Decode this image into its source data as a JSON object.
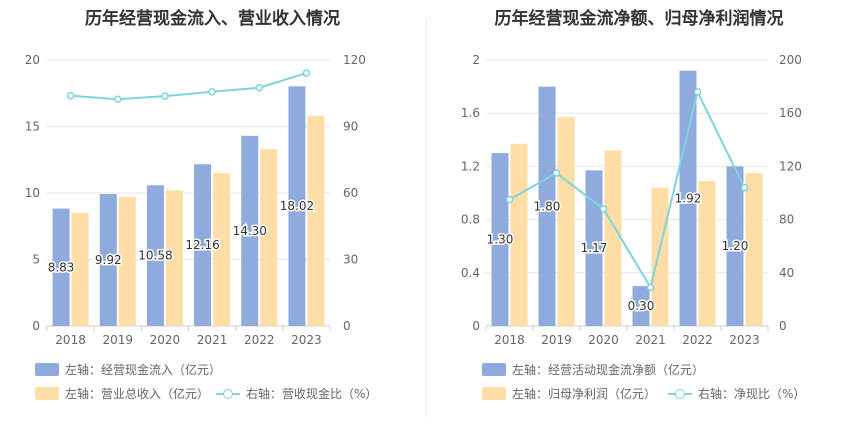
{
  "colors": {
    "bar_primary": "#8faadc",
    "bar_secondary": "#ffdda6",
    "line": "#7fd3dc"
  },
  "charts": [
    {
      "title": "历年经营现金流入、营业收入情况",
      "legend": {
        "bar1": "左轴：经营现金流入（亿元）",
        "bar2": "左轴：营业总收入（亿元）",
        "line": "右轴：营收现金比（%）"
      }
    },
    {
      "title": "历年经营现金流净额、归母净利润情况",
      "legend": {
        "bar1": "左轴：经营活动现金流净额（亿元）",
        "bar2": "左轴：归母净利润（亿元）",
        "line": "右轴：净现比（%）"
      }
    }
  ],
  "chart_data": [
    {
      "type": "bar",
      "title": "历年经营现金流入、营业收入情况",
      "categories": [
        "2018",
        "2019",
        "2020",
        "2021",
        "2022",
        "2023"
      ],
      "series": [
        {
          "name": "左轴：经营现金流入（亿元）",
          "type": "bar",
          "axis": "left",
          "values": [
            8.83,
            9.92,
            10.58,
            12.16,
            14.3,
            18.02
          ],
          "labels": [
            "8.83",
            "9.92",
            "10.58",
            "12.16",
            "14.30",
            "18.02"
          ]
        },
        {
          "name": "左轴：营业总收入（亿元）",
          "type": "bar",
          "axis": "left",
          "values": [
            8.5,
            9.7,
            10.2,
            11.5,
            13.3,
            15.8
          ]
        },
        {
          "name": "右轴：营收现金比（%）",
          "type": "line",
          "axis": "right",
          "values": [
            103.9,
            102.3,
            103.7,
            105.7,
            107.5,
            114.1
          ]
        }
      ],
      "left_axis": {
        "min": 0,
        "max": 20,
        "ticks": [
          "0",
          "5",
          "10",
          "15",
          "20"
        ]
      },
      "right_axis": {
        "min": 0,
        "max": 120,
        "ticks": [
          "0",
          "30",
          "60",
          "90",
          "120"
        ]
      },
      "grid": true,
      "legend_position": "bottom-left"
    },
    {
      "type": "bar",
      "title": "历年经营现金流净额、归母净利润情况",
      "categories": [
        "2018",
        "2019",
        "2020",
        "2021",
        "2022",
        "2023"
      ],
      "series": [
        {
          "name": "左轴：经营活动现金流净额（亿元）",
          "type": "bar",
          "axis": "left",
          "values": [
            1.3,
            1.8,
            1.17,
            0.3,
            1.92,
            1.2
          ],
          "labels": [
            "1.30",
            "1.80",
            "1.17",
            "0.30",
            "1.92",
            "1.20"
          ]
        },
        {
          "name": "左轴：归母净利润（亿元）",
          "type": "bar",
          "axis": "left",
          "values": [
            1.37,
            1.57,
            1.32,
            1.04,
            1.09,
            1.15
          ]
        },
        {
          "name": "右轴：净现比（%）",
          "type": "line",
          "axis": "right",
          "values": [
            95,
            115,
            88,
            29,
            176,
            104
          ]
        }
      ],
      "left_axis": {
        "min": 0,
        "max": 2,
        "ticks": [
          "0",
          "0.4",
          "0.8",
          "1.2",
          "1.6",
          "2"
        ]
      },
      "right_axis": {
        "min": 0,
        "max": 200,
        "ticks": [
          "0",
          "40",
          "80",
          "120",
          "160",
          "200"
        ]
      },
      "grid": true,
      "legend_position": "bottom-left"
    }
  ]
}
